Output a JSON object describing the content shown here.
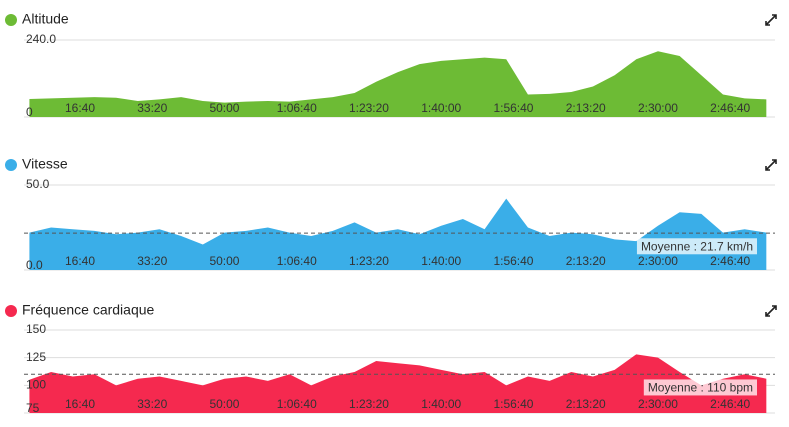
{
  "chart_data": [
    {
      "type": "area",
      "title": "Altitude",
      "color": "#6dbb35",
      "x": [
        300,
        600,
        900,
        1200,
        1500,
        1800,
        2100,
        2400,
        2700,
        3000,
        3300,
        3600,
        3900,
        4200,
        4500,
        4800,
        5100,
        5400,
        5700,
        6000,
        6300,
        6600,
        6900,
        7200,
        7500,
        7800,
        8100,
        8400,
        8700,
        9000,
        9300,
        9600,
        9900,
        10200,
        10500
      ],
      "values": [
        56,
        58,
        60,
        62,
        60,
        50,
        55,
        62,
        50,
        45,
        48,
        50,
        48,
        55,
        62,
        75,
        110,
        140,
        165,
        175,
        180,
        185,
        180,
        70,
        72,
        78,
        95,
        130,
        180,
        205,
        190,
        130,
        70,
        58,
        55
      ],
      "xlim": [
        225,
        10620
      ],
      "xticks": [
        {
          "value": 1000,
          "label": "16:40"
        },
        {
          "value": 2000,
          "label": "33:20"
        },
        {
          "value": 3000,
          "label": "50:00"
        },
        {
          "value": 4000,
          "label": "1:06:40"
        },
        {
          "value": 5000,
          "label": "1:23:20"
        },
        {
          "value": 6000,
          "label": "1:40:00"
        },
        {
          "value": 7000,
          "label": "1:56:40"
        },
        {
          "value": 8000,
          "label": "2:13:20"
        },
        {
          "value": 9000,
          "label": "2:30:00"
        },
        {
          "value": 10000,
          "label": "2:46:40"
        }
      ],
      "ylim": [
        0,
        240
      ],
      "yticks": [
        0,
        {
          "value": 240,
          "label": "240.0"
        }
      ]
    },
    {
      "type": "area",
      "title": "Vitesse",
      "color": "#3aaee8",
      "x": [
        300,
        600,
        900,
        1200,
        1500,
        1800,
        2100,
        2400,
        2700,
        3000,
        3300,
        3600,
        3900,
        4200,
        4500,
        4800,
        5100,
        5400,
        5700,
        6000,
        6300,
        6600,
        6900,
        7200,
        7500,
        7800,
        8100,
        8400,
        8700,
        9000,
        9300,
        9600,
        9900,
        10200,
        10500
      ],
      "values": [
        22,
        25,
        24,
        23,
        21,
        22,
        24,
        20,
        15,
        22,
        23,
        25,
        22,
        20,
        23,
        28,
        22,
        24,
        21,
        26,
        30,
        24,
        42,
        25,
        20,
        22,
        21,
        18,
        17,
        26,
        34,
        33,
        22,
        24,
        22
      ],
      "xlim": [
        225,
        10620
      ],
      "xticks": [
        {
          "value": 1000,
          "label": "16:40"
        },
        {
          "value": 2000,
          "label": "33:20"
        },
        {
          "value": 3000,
          "label": "50:00"
        },
        {
          "value": 4000,
          "label": "1:06:40"
        },
        {
          "value": 5000,
          "label": "1:23:20"
        },
        {
          "value": 6000,
          "label": "1:40:00"
        },
        {
          "value": 7000,
          "label": "1:56:40"
        },
        {
          "value": 8000,
          "label": "2:13:20"
        },
        {
          "value": 9000,
          "label": "2:30:00"
        },
        {
          "value": 10000,
          "label": "2:46:40"
        }
      ],
      "ylim": [
        0,
        50
      ],
      "yticks": [
        {
          "value": 0,
          "label": "0.0"
        },
        {
          "value": 50,
          "label": "50.0"
        }
      ],
      "annotation": {
        "value": 21.7,
        "label": "Moyenne : 21.7 km/h"
      }
    },
    {
      "type": "area",
      "title": "Fréquence cardiaque",
      "color": "#f5294f",
      "x": [
        300,
        600,
        900,
        1200,
        1500,
        1800,
        2100,
        2400,
        2700,
        3000,
        3300,
        3600,
        3900,
        4200,
        4500,
        4800,
        5100,
        5400,
        5700,
        6000,
        6300,
        6600,
        6900,
        7200,
        7500,
        7800,
        8100,
        8400,
        8700,
        9000,
        9300,
        9600,
        9900,
        10200,
        10500
      ],
      "values": [
        105,
        112,
        108,
        110,
        100,
        106,
        108,
        104,
        100,
        106,
        108,
        104,
        110,
        100,
        108,
        112,
        122,
        120,
        118,
        114,
        110,
        112,
        100,
        108,
        104,
        112,
        108,
        114,
        128,
        125,
        112,
        100,
        106,
        110,
        106
      ],
      "xlim": [
        225,
        10620
      ],
      "xticks": [
        {
          "value": 1000,
          "label": "16:40"
        },
        {
          "value": 2000,
          "label": "33:20"
        },
        {
          "value": 3000,
          "label": "50:00"
        },
        {
          "value": 4000,
          "label": "1:06:40"
        },
        {
          "value": 5000,
          "label": "1:23:20"
        },
        {
          "value": 6000,
          "label": "1:40:00"
        },
        {
          "value": 7000,
          "label": "1:56:40"
        },
        {
          "value": 8000,
          "label": "2:13:20"
        },
        {
          "value": 9000,
          "label": "2:30:00"
        },
        {
          "value": 10000,
          "label": "2:46:40"
        }
      ],
      "ylim": [
        75,
        150
      ],
      "yticks": [
        75,
        100,
        125,
        150
      ],
      "annotation": {
        "value": 110,
        "label": "Moyenne : 110 bpm"
      }
    }
  ]
}
